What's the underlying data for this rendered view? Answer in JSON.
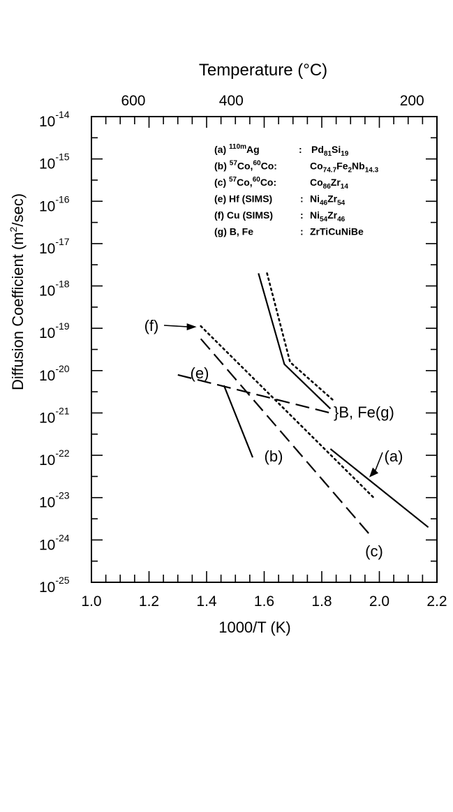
{
  "chart_data": {
    "type": "line",
    "xlabel": "1000/T (K)",
    "ylabel": "Diffusion Coefficient (m",
    "ylabel_sup": "2",
    "ylabel_end": "/sec)",
    "top_axis_label": "Temperature (°C)",
    "xlim": [
      1.0,
      2.2
    ],
    "ylim_exponent": [
      -25,
      -14
    ],
    "x_ticks": [
      1.0,
      1.2,
      1.4,
      1.6,
      1.8,
      2.0,
      2.2
    ],
    "x_tick_labels": [
      "1.0",
      "1.2",
      "1.4",
      "1.6",
      "1.8",
      "2.0",
      "2.2"
    ],
    "y_ticks": [
      -14,
      -15,
      -16,
      -17,
      -18,
      -19,
      -20,
      -21,
      -22,
      -23,
      -24,
      -25
    ],
    "y_tick_labels": [
      {
        "base": "10",
        "exp": "-14"
      },
      {
        "base": "10",
        "exp": "-15"
      },
      {
        "base": "10",
        "exp": "-16"
      },
      {
        "base": "10",
        "exp": "-17"
      },
      {
        "base": "10",
        "exp": "-18"
      },
      {
        "base": "10",
        "exp": "-19"
      },
      {
        "base": "10",
        "exp": "-20"
      },
      {
        "base": "10",
        "exp": "-21"
      },
      {
        "base": "10",
        "exp": "-22"
      },
      {
        "base": "10",
        "exp": "-23"
      },
      {
        "base": "10",
        "exp": "-24"
      },
      {
        "base": "10",
        "exp": "-25"
      }
    ],
    "top_ticks": [
      {
        "label": "600",
        "x": 1.1454
      },
      {
        "label": "400",
        "x": 1.4856
      },
      {
        "label": "200",
        "x": 2.1133
      }
    ],
    "legend": [
      {
        "key": "(a)",
        "sup": "110m",
        "species": "Ag",
        "sep": ":",
        "alloy": [
          {
            "t": "Pd"
          },
          {
            "t": "81",
            "sub": true
          },
          {
            "t": "Si"
          },
          {
            "t": "19",
            "sub": true
          }
        ]
      },
      {
        "key": "(b)",
        "sup": "57",
        "species": "Co,",
        "sup2": "60",
        "species2": "Co:",
        "alloy": [
          {
            "t": "Co"
          },
          {
            "t": "74.7",
            "sub": true
          },
          {
            "t": "Fe"
          },
          {
            "t": "2",
            "sub": true
          },
          {
            "t": "Nb"
          },
          {
            "t": "14.3",
            "sub": true
          }
        ]
      },
      {
        "key": "(c)",
        "sup": "57",
        "species": "Co,",
        "sup2": "60",
        "species2": "Co:",
        "alloy": [
          {
            "t": "Co"
          },
          {
            "t": "86",
            "sub": true
          },
          {
            "t": "Zr"
          },
          {
            "t": "14",
            "sub": true
          }
        ]
      },
      {
        "key": "(e)",
        "species": "Hf (SIMS)",
        "sep": ":",
        "alloy": [
          {
            "t": "Ni"
          },
          {
            "t": "46",
            "sub": true
          },
          {
            "t": "Zr"
          },
          {
            "t": "54",
            "sub": true
          }
        ]
      },
      {
        "key": "(f)",
        "species": "Cu (SIMS)",
        "sep": ":",
        "alloy": [
          {
            "t": "Ni"
          },
          {
            "t": "54",
            "sub": true
          },
          {
            "t": "Zr"
          },
          {
            "t": "46",
            "sub": true
          }
        ]
      },
      {
        "key": "(g)",
        "species": "B, Fe",
        "sep": ":",
        "alloy": [
          {
            "t": "ZrTiCuNiBe"
          }
        ]
      }
    ],
    "series": [
      {
        "name": "(a)",
        "style": "solid",
        "x": [
          1.83,
          2.17
        ],
        "log10y": [
          -21.85,
          -23.7
        ]
      },
      {
        "name": "(b)",
        "style": "solid",
        "x": [
          1.46,
          1.56
        ],
        "log10y": [
          -20.35,
          -22.05
        ]
      },
      {
        "name": "(c)",
        "style": "dashed",
        "x": [
          1.38,
          1.97
        ],
        "log10y": [
          -19.25,
          -23.9
        ]
      },
      {
        "name": "(e)",
        "style": "dashed",
        "x": [
          1.3,
          1.83
        ],
        "log10y": [
          -20.1,
          -21.0
        ]
      },
      {
        "name": "(f)",
        "style": "dotted",
        "x": [
          1.38,
          1.98
        ],
        "log10y": [
          -18.95,
          -23.0
        ]
      },
      {
        "name": "B",
        "style": "solid",
        "x": [
          1.58,
          1.67,
          1.83
        ],
        "log10y": [
          -17.7,
          -19.85,
          -20.9
        ]
      },
      {
        "name": "Fe",
        "style": "dotted",
        "x": [
          1.61,
          1.69,
          1.84
        ],
        "log10y": [
          -17.7,
          -19.8,
          -20.7
        ]
      }
    ],
    "annotations": [
      {
        "text": "(f)",
        "arrow": true,
        "target_x": 1.37,
        "target_log10y": -18.95
      },
      {
        "text": "(e)",
        "arrow": false
      },
      {
        "text": "(b)",
        "arrow": false
      },
      {
        "text": "(a)",
        "arrow": true,
        "target_x": 1.965,
        "target_log10y": -22.5
      },
      {
        "text": "(c)",
        "arrow": false
      },
      {
        "text": "}B, Fe(g)",
        "arrow": false
      }
    ]
  }
}
